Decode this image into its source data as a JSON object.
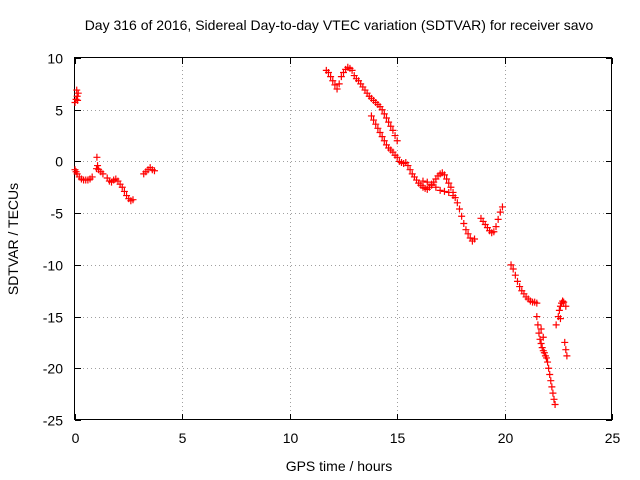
{
  "chart_data": {
    "type": "scatter",
    "title": "Day 316 of 2016, Sidereal Day-to-day VTEC variation (SDTVAR) for receiver savo",
    "xlabel": "GPS time / hours",
    "ylabel": "SDTVAR / TECUs",
    "xlim": [
      0,
      25
    ],
    "ylim": [
      -25,
      10
    ],
    "xticks": [
      0,
      5,
      10,
      15,
      20,
      25
    ],
    "yticks": [
      10,
      5,
      0,
      -5,
      -10,
      -15,
      -20,
      -25
    ],
    "xtick_labels": [
      "0",
      "5",
      "10",
      "15",
      "20",
      "25"
    ],
    "ytick_labels": [
      "10",
      "5",
      "0",
      "-5",
      "-10",
      "-15",
      "-20",
      "-25"
    ],
    "grid": true,
    "marker": "+",
    "color": "#ff0000",
    "series": [
      {
        "name": "SDTVAR",
        "points": [
          [
            0.0,
            5.7
          ],
          [
            0.05,
            6.0
          ],
          [
            0.1,
            6.3
          ],
          [
            0.15,
            6.6
          ],
          [
            0.12,
            5.9
          ],
          [
            0.08,
            6.9
          ],
          [
            0.0,
            -0.8
          ],
          [
            0.05,
            -1.0
          ],
          [
            0.1,
            -1.2
          ],
          [
            0.2,
            -1.5
          ],
          [
            0.3,
            -1.7
          ],
          [
            0.4,
            -1.8
          ],
          [
            0.5,
            -1.8
          ],
          [
            0.6,
            -1.8
          ],
          [
            0.7,
            -1.7
          ],
          [
            0.8,
            -1.5
          ],
          [
            1.0,
            -0.7
          ],
          [
            1.02,
            0.4
          ],
          [
            1.05,
            -0.4
          ],
          [
            1.1,
            -0.8
          ],
          [
            1.2,
            -1.0
          ],
          [
            1.3,
            -1.2
          ],
          [
            1.5,
            -1.6
          ],
          [
            1.6,
            -1.9
          ],
          [
            1.7,
            -2.0
          ],
          [
            1.8,
            -1.8
          ],
          [
            1.9,
            -1.7
          ],
          [
            2.0,
            -1.9
          ],
          [
            2.1,
            -2.2
          ],
          [
            2.2,
            -2.5
          ],
          [
            2.3,
            -2.9
          ],
          [
            2.4,
            -3.3
          ],
          [
            2.5,
            -3.6
          ],
          [
            2.6,
            -3.8
          ],
          [
            2.7,
            -3.7
          ],
          [
            3.2,
            -1.2
          ],
          [
            3.3,
            -1.0
          ],
          [
            3.4,
            -0.8
          ],
          [
            3.5,
            -0.6
          ],
          [
            3.6,
            -0.8
          ],
          [
            3.7,
            -0.9
          ],
          [
            11.7,
            8.8
          ],
          [
            11.8,
            8.6
          ],
          [
            11.9,
            8.2
          ],
          [
            12.0,
            7.8
          ],
          [
            12.1,
            7.4
          ],
          [
            12.2,
            7.0
          ],
          [
            12.3,
            7.5
          ],
          [
            12.4,
            8.2
          ],
          [
            12.5,
            8.6
          ],
          [
            12.6,
            8.9
          ],
          [
            12.7,
            9.1
          ],
          [
            12.8,
            9.0
          ],
          [
            12.9,
            8.8
          ],
          [
            13.0,
            8.3
          ],
          [
            13.1,
            8.0
          ],
          [
            13.2,
            7.8
          ],
          [
            13.3,
            7.5
          ],
          [
            13.4,
            7.2
          ],
          [
            13.5,
            6.9
          ],
          [
            13.6,
            6.6
          ],
          [
            13.7,
            6.3
          ],
          [
            13.8,
            6.1
          ],
          [
            13.9,
            5.9
          ],
          [
            14.0,
            5.7
          ],
          [
            14.1,
            5.5
          ],
          [
            14.2,
            5.3
          ],
          [
            14.3,
            5.0
          ],
          [
            14.4,
            4.6
          ],
          [
            14.5,
            4.2
          ],
          [
            14.6,
            3.8
          ],
          [
            14.7,
            3.4
          ],
          [
            14.8,
            3.0
          ],
          [
            14.9,
            2.5
          ],
          [
            15.0,
            2.0
          ],
          [
            13.8,
            4.4
          ],
          [
            13.9,
            4.0
          ],
          [
            14.0,
            3.6
          ],
          [
            14.1,
            3.2
          ],
          [
            14.2,
            2.8
          ],
          [
            14.3,
            2.4
          ],
          [
            14.4,
            2.0
          ],
          [
            14.5,
            1.6
          ],
          [
            14.6,
            1.3
          ],
          [
            14.7,
            1.1
          ],
          [
            14.8,
            0.9
          ],
          [
            14.9,
            0.6
          ],
          [
            15.0,
            0.4
          ],
          [
            15.1,
            0.0
          ],
          [
            15.2,
            -0.1
          ],
          [
            15.3,
            -0.2
          ],
          [
            15.4,
            -0.1
          ],
          [
            15.5,
            -0.4
          ],
          [
            15.6,
            -0.8
          ],
          [
            15.7,
            -1.2
          ],
          [
            15.8,
            -1.5
          ],
          [
            15.9,
            -1.8
          ],
          [
            16.0,
            -2.1
          ],
          [
            16.1,
            -2.3
          ],
          [
            16.2,
            -2.5
          ],
          [
            16.3,
            -2.6
          ],
          [
            16.4,
            -2.7
          ],
          [
            16.5,
            -2.5
          ],
          [
            16.6,
            -2.3
          ],
          [
            16.7,
            -2.0
          ],
          [
            16.8,
            -1.7
          ],
          [
            16.9,
            -1.4
          ],
          [
            17.0,
            -1.2
          ],
          [
            17.1,
            -1.1
          ],
          [
            17.2,
            -1.3
          ],
          [
            17.3,
            -1.7
          ],
          [
            17.4,
            -2.1
          ],
          [
            17.5,
            -2.5
          ],
          [
            17.6,
            -3.0
          ],
          [
            17.7,
            -3.5
          ],
          [
            17.8,
            -4.0
          ],
          [
            17.9,
            -4.6
          ],
          [
            18.0,
            -5.3
          ],
          [
            18.1,
            -6.0
          ],
          [
            18.2,
            -6.6
          ],
          [
            18.3,
            -7.0
          ],
          [
            18.4,
            -7.4
          ],
          [
            18.5,
            -7.7
          ],
          [
            18.6,
            -7.5
          ],
          [
            16.2,
            -1.9
          ],
          [
            16.4,
            -2.0
          ],
          [
            16.6,
            -2.2
          ],
          [
            16.8,
            -2.5
          ],
          [
            17.0,
            -2.8
          ],
          [
            17.2,
            -2.9
          ],
          [
            17.4,
            -3.0
          ],
          [
            17.6,
            -3.3
          ],
          [
            18.9,
            -5.5
          ],
          [
            19.0,
            -5.8
          ],
          [
            19.1,
            -6.1
          ],
          [
            19.2,
            -6.4
          ],
          [
            19.3,
            -6.7
          ],
          [
            19.4,
            -6.9
          ],
          [
            19.5,
            -6.8
          ],
          [
            19.6,
            -6.3
          ],
          [
            19.7,
            -5.6
          ],
          [
            19.8,
            -4.9
          ],
          [
            19.9,
            -4.4
          ],
          [
            20.3,
            -10.0
          ],
          [
            20.4,
            -10.4
          ],
          [
            20.5,
            -11.0
          ],
          [
            20.6,
            -11.6
          ],
          [
            20.7,
            -12.1
          ],
          [
            20.8,
            -12.5
          ],
          [
            20.9,
            -12.8
          ],
          [
            21.0,
            -13.1
          ],
          [
            21.1,
            -13.3
          ],
          [
            21.2,
            -13.5
          ],
          [
            21.3,
            -13.6
          ],
          [
            21.4,
            -13.6
          ],
          [
            21.5,
            -13.7
          ],
          [
            21.5,
            -15.0
          ],
          [
            21.55,
            -15.8
          ],
          [
            21.6,
            -16.6
          ],
          [
            21.65,
            -17.2
          ],
          [
            21.7,
            -17.6
          ],
          [
            21.75,
            -18.0
          ],
          [
            21.8,
            -18.3
          ],
          [
            21.85,
            -18.5
          ],
          [
            21.7,
            -16.2
          ],
          [
            21.8,
            -17.0
          ],
          [
            21.9,
            -18.8
          ],
          [
            22.0,
            -19.4
          ],
          [
            22.05,
            -20.0
          ],
          [
            22.1,
            -20.6
          ],
          [
            22.15,
            -21.2
          ],
          [
            22.2,
            -21.8
          ],
          [
            22.25,
            -22.4
          ],
          [
            22.3,
            -23.0
          ],
          [
            22.35,
            -23.5
          ],
          [
            21.95,
            -19.0
          ],
          [
            22.4,
            -15.8
          ],
          [
            22.5,
            -15.0
          ],
          [
            22.55,
            -14.4
          ],
          [
            22.6,
            -14.0
          ],
          [
            22.65,
            -13.7
          ],
          [
            22.7,
            -13.5
          ],
          [
            22.75,
            -13.6
          ],
          [
            22.8,
            -17.5
          ],
          [
            22.85,
            -18.2
          ],
          [
            22.9,
            -18.8
          ],
          [
            22.85,
            -14.0
          ],
          [
            22.6,
            -15.2
          ]
        ]
      }
    ]
  }
}
